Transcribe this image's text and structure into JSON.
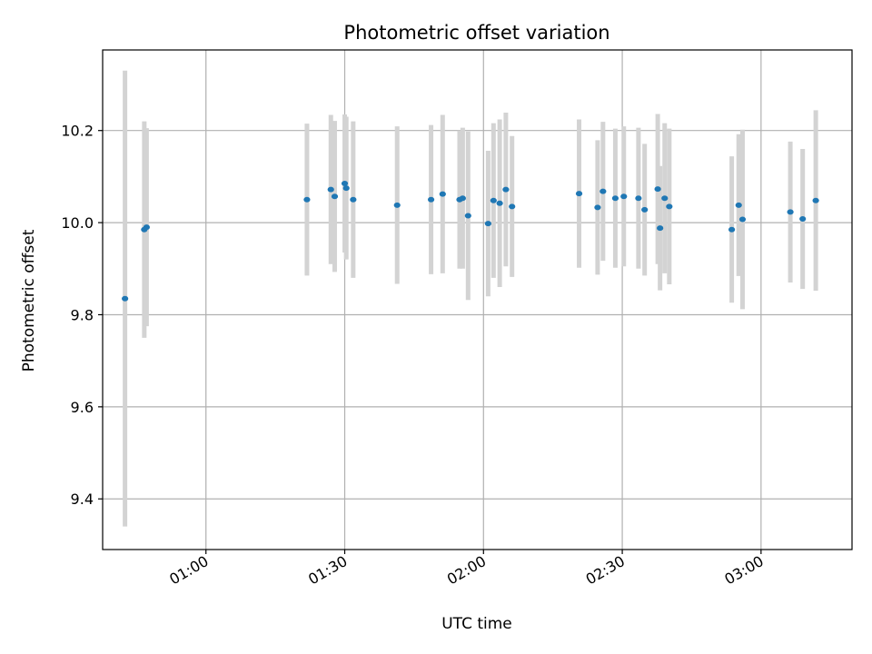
{
  "chart_data": {
    "type": "scatter",
    "title": "Photometric offset variation",
    "xlabel": "UTC time",
    "ylabel": "Photometric offset",
    "xlim": [
      "00:37:40",
      "03:19:40"
    ],
    "ylim": [
      9.29,
      10.375
    ],
    "x_ticks": [
      "01:00",
      "01:30",
      "02:00",
      "02:30",
      "03:00"
    ],
    "y_ticks": [
      "9.4",
      "9.6",
      "9.8",
      "10.0",
      "10.2"
    ],
    "grid": true,
    "colors": {
      "marker": "#1f77b4",
      "errorbar": "#d3d3d3",
      "grid": "#b0b0b0"
    },
    "points": [
      {
        "x": "00:42:30",
        "y": 9.835,
        "ylow": 9.34,
        "yhigh": 10.33
      },
      {
        "x": "00:46:40",
        "y": 9.985,
        "ylow": 9.75,
        "yhigh": 10.22
      },
      {
        "x": "00:47:10",
        "y": 9.99,
        "ylow": 9.775,
        "yhigh": 10.205
      },
      {
        "x": "01:21:50",
        "y": 10.05,
        "ylow": 9.885,
        "yhigh": 10.215
      },
      {
        "x": "01:27:00",
        "y": 10.072,
        "ylow": 9.91,
        "yhigh": 10.234
      },
      {
        "x": "01:27:50",
        "y": 10.057,
        "ylow": 9.893,
        "yhigh": 10.221
      },
      {
        "x": "01:30:00",
        "y": 10.085,
        "ylow": 9.935,
        "yhigh": 10.235
      },
      {
        "x": "01:30:20",
        "y": 10.075,
        "ylow": 9.92,
        "yhigh": 10.23
      },
      {
        "x": "01:31:50",
        "y": 10.05,
        "ylow": 9.88,
        "yhigh": 10.22
      },
      {
        "x": "01:41:20",
        "y": 10.038,
        "ylow": 9.867,
        "yhigh": 10.209
      },
      {
        "x": "01:48:40",
        "y": 10.05,
        "ylow": 9.888,
        "yhigh": 10.212
      },
      {
        "x": "01:51:10",
        "y": 10.062,
        "ylow": 9.89,
        "yhigh": 10.234
      },
      {
        "x": "01:54:50",
        "y": 10.05,
        "ylow": 9.9,
        "yhigh": 10.2
      },
      {
        "x": "01:55:30",
        "y": 10.053,
        "ylow": 9.9,
        "yhigh": 10.206
      },
      {
        "x": "01:56:40",
        "y": 10.015,
        "ylow": 9.832,
        "yhigh": 10.198
      },
      {
        "x": "02:01:00",
        "y": 9.998,
        "ylow": 9.84,
        "yhigh": 10.156
      },
      {
        "x": "02:02:10",
        "y": 10.048,
        "ylow": 9.88,
        "yhigh": 10.216
      },
      {
        "x": "02:03:30",
        "y": 10.042,
        "ylow": 9.86,
        "yhigh": 10.224
      },
      {
        "x": "02:04:50",
        "y": 10.072,
        "ylow": 9.905,
        "yhigh": 10.239
      },
      {
        "x": "02:06:10",
        "y": 10.035,
        "ylow": 9.882,
        "yhigh": 10.188
      },
      {
        "x": "02:20:40",
        "y": 10.063,
        "ylow": 9.902,
        "yhigh": 10.224
      },
      {
        "x": "02:24:40",
        "y": 10.033,
        "ylow": 9.887,
        "yhigh": 10.179
      },
      {
        "x": "02:25:50",
        "y": 10.068,
        "ylow": 9.917,
        "yhigh": 10.219
      },
      {
        "x": "02:28:30",
        "y": 10.053,
        "ylow": 9.902,
        "yhigh": 10.204
      },
      {
        "x": "02:30:20",
        "y": 10.057,
        "ylow": 9.905,
        "yhigh": 10.209
      },
      {
        "x": "02:33:30",
        "y": 10.053,
        "ylow": 9.9,
        "yhigh": 10.206
      },
      {
        "x": "02:34:50",
        "y": 10.028,
        "ylow": 9.885,
        "yhigh": 10.171
      },
      {
        "x": "02:37:40",
        "y": 10.073,
        "ylow": 9.91,
        "yhigh": 10.236
      },
      {
        "x": "02:38:10",
        "y": 9.988,
        "ylow": 9.853,
        "yhigh": 10.123
      },
      {
        "x": "02:39:10",
        "y": 10.053,
        "ylow": 9.89,
        "yhigh": 10.216
      },
      {
        "x": "02:40:10",
        "y": 10.035,
        "ylow": 9.866,
        "yhigh": 10.204
      },
      {
        "x": "02:53:40",
        "y": 9.985,
        "ylow": 9.826,
        "yhigh": 10.144
      },
      {
        "x": "02:55:10",
        "y": 10.038,
        "ylow": 9.884,
        "yhigh": 10.192
      },
      {
        "x": "02:56:00",
        "y": 10.007,
        "ylow": 9.812,
        "yhigh": 10.202
      },
      {
        "x": "03:06:20",
        "y": 10.023,
        "ylow": 9.87,
        "yhigh": 10.176
      },
      {
        "x": "03:09:00",
        "y": 10.008,
        "ylow": 9.856,
        "yhigh": 10.16
      },
      {
        "x": "03:11:50",
        "y": 10.048,
        "ylow": 9.852,
        "yhigh": 10.244
      }
    ]
  }
}
